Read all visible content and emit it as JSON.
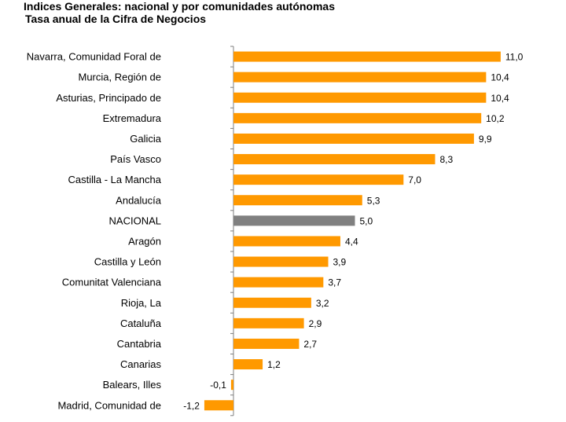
{
  "chart_data": {
    "type": "bar",
    "orientation": "horizontal",
    "title": "Indices Generales: nacional y por comunidades autónomas",
    "subtitle": "Tasa anual de la Cifra de Negocios",
    "categories": [
      "Navarra, Comunidad Foral de",
      "Murcia, Región de",
      "Asturias, Principado de",
      "Extremadura",
      "Galicia",
      "País Vasco",
      "Castilla - La Mancha",
      "Andalucía",
      "NACIONAL",
      "Aragón",
      "Castilla y León",
      "Comunitat Valenciana",
      "Rioja, La",
      "Cataluña",
      "Cantabria",
      "Canarias",
      "Balears, Illes",
      "Madrid, Comunidad de"
    ],
    "values": [
      11.0,
      10.4,
      10.4,
      10.2,
      9.9,
      8.3,
      7.0,
      5.3,
      5.0,
      4.4,
      3.9,
      3.7,
      3.2,
      2.9,
      2.7,
      1.2,
      -0.1,
      -1.2
    ],
    "value_labels": [
      "11,0",
      "10,4",
      "10,4",
      "10,2",
      "9,9",
      "8,3",
      "7,0",
      "5,3",
      "5,0",
      "4,4",
      "3,9",
      "3,7",
      "3,2",
      "2,9",
      "2,7",
      "1,2",
      "-0,1",
      "-1,2"
    ],
    "highlight_category": "NACIONAL",
    "colors": {
      "bar": "#FF9900",
      "highlight": "#808080",
      "axis": "#7f7f7f"
    },
    "xlim": [
      -1.2,
      11.0
    ],
    "grid": false,
    "legend": false
  }
}
